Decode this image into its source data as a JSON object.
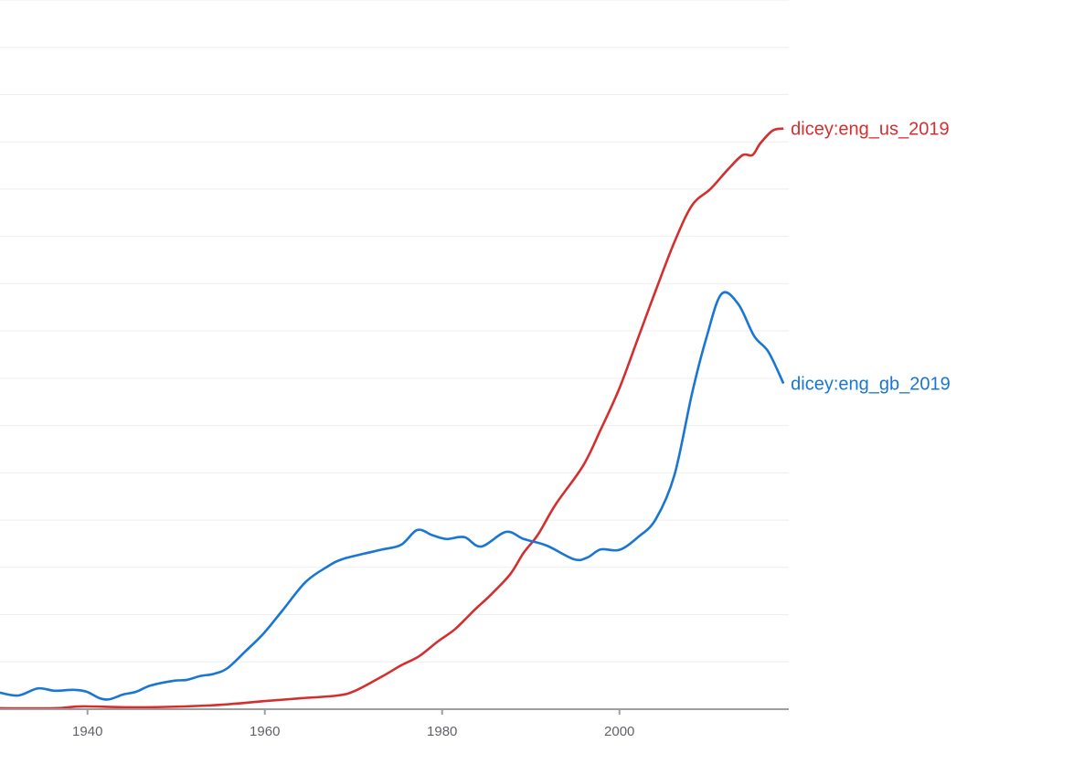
{
  "chart_data": {
    "type": "line",
    "title": "",
    "xlabel": "",
    "ylabel": "",
    "xlim": [
      1930.13,
      2019.1
    ],
    "ylim": [
      0,
      15
    ],
    "y_unit_note": "y values in gridline units (no y tick labels visible)",
    "grid": true,
    "x_ticks": [
      "1940",
      "1960",
      "1980",
      "2000"
    ],
    "x_tick_values": [
      1940,
      1960,
      1980,
      2000
    ],
    "legend_placement": "inline-right",
    "series": [
      {
        "name": "dicey:eng_us_2019",
        "color": "#d32f2f",
        "x": [
          1930.1,
          1936.3,
          1939.4,
          1945.5,
          1953.8,
          1959.9,
          1964.0,
          1968.2,
          1970.2,
          1973.3,
          1975.4,
          1977.4,
          1979.5,
          1981.5,
          1983.6,
          1985.6,
          1987.7,
          1989.2,
          1990.8,
          1992.8,
          1995.9,
          1997.9,
          2000.0,
          2002.1,
          2004.1,
          2006.2,
          2008.2,
          2010.3,
          2012.3,
          2013.9,
          2015.0,
          2015.9,
          2017.3,
          2018.5
        ],
        "values": [
          0.02,
          0.02,
          0.06,
          0.04,
          0.08,
          0.17,
          0.23,
          0.29,
          0.39,
          0.7,
          0.93,
          1.12,
          1.43,
          1.7,
          2.09,
          2.44,
          2.86,
          3.31,
          3.69,
          4.33,
          5.15,
          5.92,
          6.79,
          7.85,
          8.86,
          9.88,
          10.66,
          11.01,
          11.43,
          11.72,
          11.72,
          11.97,
          12.24,
          12.28
        ]
      },
      {
        "name": "dicey:eng_gb_2019",
        "color": "#1976d2",
        "x": [
          1930.1,
          1932.2,
          1934.4,
          1936.3,
          1938.4,
          1939.9,
          1941.4,
          1942.5,
          1944.0,
          1945.5,
          1947.1,
          1949.7,
          1951.2,
          1952.7,
          1954.3,
          1955.8,
          1957.9,
          1959.9,
          1962.0,
          1964.6,
          1967.1,
          1968.7,
          1971.2,
          1973.3,
          1975.4,
          1977.2,
          1978.9,
          1980.5,
          1982.5,
          1984.4,
          1987.2,
          1989.2,
          1991.8,
          1994.9,
          1996.4,
          1997.9,
          2000.0,
          2002.1,
          2004.1,
          2006.2,
          2008.2,
          2009.8,
          2011.5,
          2013.4,
          2015.2,
          2016.8,
          2018.5
        ],
        "values": [
          0.35,
          0.29,
          0.44,
          0.39,
          0.41,
          0.37,
          0.23,
          0.21,
          0.31,
          0.37,
          0.5,
          0.6,
          0.62,
          0.7,
          0.75,
          0.87,
          1.24,
          1.61,
          2.09,
          2.69,
          3.02,
          3.17,
          3.29,
          3.38,
          3.48,
          3.79,
          3.68,
          3.6,
          3.64,
          3.44,
          3.75,
          3.6,
          3.46,
          3.17,
          3.21,
          3.38,
          3.37,
          3.64,
          4.02,
          4.95,
          6.69,
          7.85,
          8.78,
          8.57,
          7.89,
          7.56,
          6.89
        ]
      }
    ]
  }
}
